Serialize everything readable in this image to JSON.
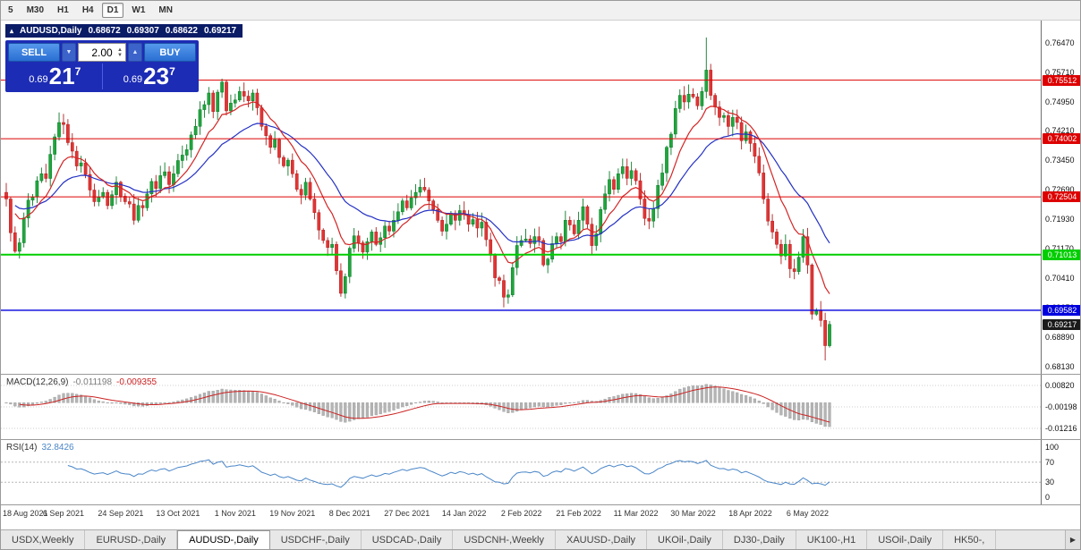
{
  "colors": {
    "up": "#1fa63d",
    "up_dark": "#0c7a28",
    "down": "#e33434",
    "down_dark": "#b01f1f",
    "ma_fast": "#d42424",
    "ma_slow": "#2431c4",
    "level_red": "#dd0000",
    "level_green": "#00ce00",
    "level_blue": "#0000dd",
    "current": "#1a1a1a",
    "macd_hist": "#b4b4b4",
    "macd_signal": "#cc2222",
    "rsi_line": "#4a86c8"
  },
  "toolbar": {
    "timeframes": [
      "5",
      "M30",
      "H1",
      "H4",
      "D1",
      "W1",
      "MN"
    ],
    "active": "D1"
  },
  "symbol_header": {
    "icon": "▴",
    "title": "AUDUSD,Daily",
    "open": "0.68672",
    "high": "0.69307",
    "low": "0.68622",
    "close": "0.69217"
  },
  "trade_panel": {
    "sell_label": "SELL",
    "buy_label": "BUY",
    "volume": "2.00",
    "sell_dropdown_icon": "▼",
    "buy_up_icon": "▲",
    "spinner_up": "▲",
    "spinner_down": "▼",
    "sell_price": {
      "small": "0.69",
      "big": "21",
      "sup": "7"
    },
    "buy_price": {
      "small": "0.69",
      "big": "23",
      "sup": "7"
    }
  },
  "price_axis": {
    "ticks": [
      {
        "text": "0.76470",
        "price": 0.7647
      },
      {
        "text": "0.75710",
        "price": 0.7571
      },
      {
        "text": "0.74950",
        "price": 0.7495
      },
      {
        "text": "0.74210",
        "price": 0.7421
      },
      {
        "text": "0.73450",
        "price": 0.7345
      },
      {
        "text": "0.72690",
        "price": 0.7269
      },
      {
        "text": "0.71930",
        "price": 0.7193
      },
      {
        "text": "0.71170",
        "price": 0.7117
      },
      {
        "text": "0.70410",
        "price": 0.7041
      },
      {
        "text": "0.69650",
        "price": 0.6965
      },
      {
        "text": "0.68890",
        "price": 0.6889
      },
      {
        "text": "0.68130",
        "price": 0.6813
      }
    ],
    "levels": [
      {
        "text": "0.75512",
        "price": 0.75512,
        "color_key": "level_red",
        "width": 1
      },
      {
        "text": "0.74002",
        "price": 0.74002,
        "color_key": "level_red",
        "width": 1
      },
      {
        "text": "0.72504",
        "price": 0.72504,
        "color_key": "level_red",
        "width": 1
      },
      {
        "text": "0.71013",
        "price": 0.71013,
        "color_key": "level_green",
        "width": 2
      },
      {
        "text": "0.69582",
        "price": 0.69582,
        "color_key": "level_blue",
        "width": 1.4
      }
    ],
    "current": {
      "text": "0.69217",
      "price": 0.69217
    }
  },
  "indicators": {
    "macd": {
      "label": "MACD(12,26,9)",
      "value_main": "-0.011198",
      "value_signal": "-0.009355",
      "axis": [
        {
          "text": "0.00820",
          "v": 0.0082
        },
        {
          "text": "-0.00198",
          "v": -0.00198
        },
        {
          "text": "-0.01216",
          "v": -0.01216
        }
      ]
    },
    "rsi": {
      "label": "RSI(14)",
      "value": "32.8426",
      "axis": [
        {
          "text": "100",
          "v": 100,
          "dashed": false
        },
        {
          "text": "70",
          "v": 70,
          "dashed": true
        },
        {
          "text": "30",
          "v": 30,
          "dashed": true
        },
        {
          "text": "0",
          "v": 0,
          "dashed": false
        }
      ]
    }
  },
  "chart_data": {
    "type": "candlestick",
    "symbol": "AUDUSD",
    "timeframe": "Daily",
    "title": "AUDUSD,Daily",
    "y_range": [
      0.6795,
      0.7705
    ],
    "x_labels": [
      "18 Aug 2021",
      "6 Sep 2021",
      "24 Sep 2021",
      "13 Oct 2021",
      "1 Nov 2021",
      "19 Nov 2021",
      "8 Dec 2021",
      "27 Dec 2021",
      "14 Jan 2022",
      "2 Feb 2022",
      "21 Feb 2022",
      "11 Mar 2022",
      "30 Mar 2022",
      "18 Apr 2022",
      "6 May 2022"
    ],
    "x_label_step": 13,
    "first_open": 0.7262,
    "ma_fast_period": 10,
    "ma_slow_period": 25,
    "levels": [
      0.75512,
      0.74002,
      0.72504,
      0.71013,
      0.69582
    ],
    "last_ohlc": {
      "open": 0.68672,
      "high": 0.69307,
      "low": 0.68622,
      "close": 0.69217
    },
    "closes": [
      0.7245,
      0.7158,
      0.711,
      0.7132,
      0.7196,
      0.7242,
      0.725,
      0.7292,
      0.731,
      0.7298,
      0.736,
      0.7405,
      0.7442,
      0.7437,
      0.739,
      0.7368,
      0.733,
      0.7338,
      0.7308,
      0.7268,
      0.7238,
      0.725,
      0.7262,
      0.7228,
      0.7256,
      0.7288,
      0.7252,
      0.7238,
      0.7232,
      0.719,
      0.7228,
      0.7222,
      0.7258,
      0.729,
      0.7272,
      0.7305,
      0.7315,
      0.7282,
      0.731,
      0.7344,
      0.7358,
      0.7372,
      0.741,
      0.7432,
      0.7475,
      0.7488,
      0.7518,
      0.747,
      0.752,
      0.7546,
      0.7472,
      0.7492,
      0.75,
      0.7522,
      0.751,
      0.7498,
      0.7518,
      0.748,
      0.7432,
      0.7408,
      0.7378,
      0.7398,
      0.7352,
      0.733,
      0.7345,
      0.731,
      0.727,
      0.7255,
      0.7288,
      0.7245,
      0.721,
      0.7165,
      0.7138,
      0.712,
      0.7128,
      0.706,
      0.7002,
      0.7045,
      0.7118,
      0.715,
      0.7132,
      0.7108,
      0.7135,
      0.716,
      0.7128,
      0.7145,
      0.7175,
      0.7162,
      0.719,
      0.7212,
      0.724,
      0.7222,
      0.7248,
      0.7262,
      0.7275,
      0.7268,
      0.724,
      0.7218,
      0.719,
      0.7162,
      0.718,
      0.7208,
      0.719,
      0.7215,
      0.7205,
      0.718,
      0.7192,
      0.717,
      0.7185,
      0.714,
      0.71,
      0.7042,
      0.7035,
      0.6992,
      0.6998,
      0.7068,
      0.7125,
      0.7138,
      0.7142,
      0.713,
      0.7148,
      0.7138,
      0.7075,
      0.709,
      0.713,
      0.7148,
      0.7135,
      0.719,
      0.7178,
      0.7155,
      0.719,
      0.7225,
      0.718,
      0.7125,
      0.7155,
      0.7218,
      0.7258,
      0.7295,
      0.727,
      0.731,
      0.7328,
      0.7298,
      0.7318,
      0.7292,
      0.7245,
      0.7195,
      0.7188,
      0.722,
      0.728,
      0.7312,
      0.7378,
      0.7412,
      0.7478,
      0.7512,
      0.7495,
      0.7515,
      0.7508,
      0.7485,
      0.7522,
      0.7577,
      0.7512,
      0.7482,
      0.7455,
      0.746,
      0.7432,
      0.7455,
      0.7442,
      0.7395,
      0.7418,
      0.7388,
      0.7355,
      0.7312,
      0.7245,
      0.7188,
      0.716,
      0.7128,
      0.7098,
      0.7128,
      0.7065,
      0.7058,
      0.7095,
      0.7148,
      0.7075,
      0.6948,
      0.6958,
      0.6932,
      0.6867,
      0.6922
    ],
    "wick_overrides": {
      "2": {
        "low": 0.7106
      },
      "49": {
        "high": 0.7555
      },
      "76": {
        "low": 0.6993
      },
      "113": {
        "low": 0.6966
      },
      "159": {
        "high": 0.7661
      },
      "186": {
        "low": 0.6829
      },
      "187": {
        "high": 0.69307,
        "low": 0.68622
      }
    }
  },
  "tabs": {
    "items": [
      "USDX,Weekly",
      "EURUSD-,Daily",
      "AUDUSD-,Daily",
      "USDCHF-,Daily",
      "USDCAD-,Daily",
      "USDCNH-,Weekly",
      "XAUUSD-,Daily",
      "UKOil-,Daily",
      "DJ30-,Daily",
      "UK100-,H1",
      "USOil-,Daily",
      "HK50-,"
    ],
    "active_index": 2,
    "scroll_right_icon": "▶"
  }
}
